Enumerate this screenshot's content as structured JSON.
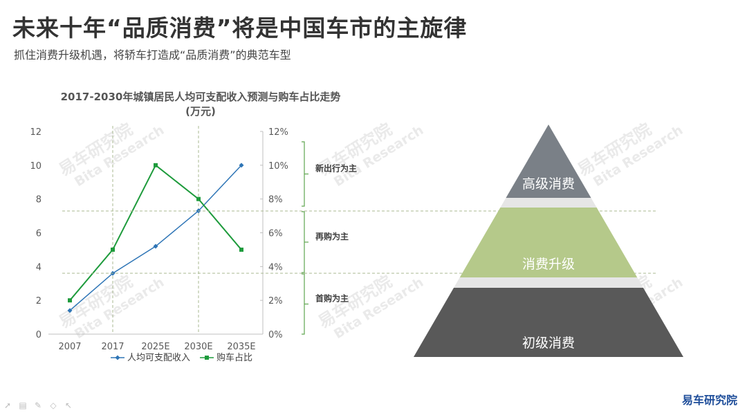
{
  "header": {
    "title": "未来十年“品质消费”将是中国车市的主旋律",
    "subtitle": "抓住消费升级机遇，将轿车打造成“品质消费”的典范车型"
  },
  "chart_data": {
    "type": "line",
    "title": "2017-2030年城镇居民人均可支配收入预测与购车占比走势(万元)",
    "categories": [
      "2007",
      "2017",
      "2025E",
      "2030E",
      "2035E"
    ],
    "series": [
      {
        "name": "人均可支配收入",
        "axis": "left",
        "color": "#2e75b6",
        "marker": "diamond",
        "values": [
          1.4,
          3.6,
          5.2,
          7.3,
          10.0
        ]
      },
      {
        "name": "购车占比",
        "axis": "right",
        "color": "#1e9b3c",
        "marker": "square",
        "values": [
          2.0,
          5.0,
          10.0,
          8.0,
          5.0
        ]
      }
    ],
    "ylim_left": [
      0,
      12
    ],
    "yticks_left": [
      "0",
      "2",
      "4",
      "6",
      "8",
      "10",
      "12"
    ],
    "ylim_right": [
      0,
      12
    ],
    "yticks_right": [
      "0%",
      "2%",
      "4%",
      "6%",
      "8%",
      "10%",
      "12%"
    ],
    "stages": [
      "新出行为主",
      "再购为主",
      "首购为主"
    ],
    "legend_position": "bottom",
    "grid": false
  },
  "pyramid": {
    "levels": [
      {
        "label": "高级消费",
        "color": "#7a8087"
      },
      {
        "label": "消费升级",
        "color": "#b5c98a"
      },
      {
        "label": "初级消费",
        "color": "#595959"
      }
    ]
  },
  "watermark": {
    "cn": "易车研究院",
    "en": "Bita Research"
  },
  "logo": {
    "text": "易车研究院"
  },
  "toolbar": {
    "icons": [
      "pointer-icon",
      "slides-icon",
      "pen-icon",
      "eraser-icon",
      "cursor-icon"
    ]
  }
}
